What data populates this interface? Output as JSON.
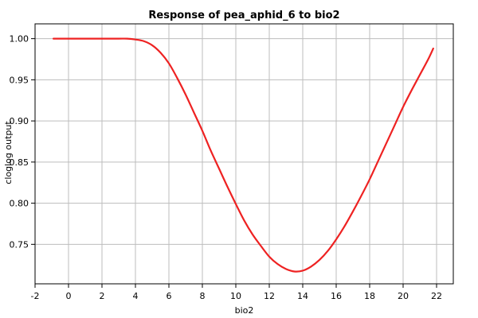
{
  "chart_data": {
    "type": "line",
    "title": "Response of pea_aphid_6 to bio2",
    "xlabel": "bio2",
    "ylabel": "cloglog output",
    "xlim": [
      -2,
      23
    ],
    "ylim": [
      0.702,
      1.018
    ],
    "x_ticks": [
      -2,
      0,
      2,
      4,
      6,
      8,
      10,
      12,
      14,
      16,
      18,
      20,
      22
    ],
    "x_tick_labels": [
      "-2",
      "0",
      "2",
      "4",
      "6",
      "8",
      "10",
      "12",
      "14",
      "16",
      "18",
      "20",
      "22"
    ],
    "y_ticks": [
      0.75,
      0.8,
      0.85,
      0.9,
      0.95,
      1.0
    ],
    "y_tick_labels": [
      "0.75",
      "0.80",
      "0.85",
      "0.90",
      "0.95",
      "1.00"
    ],
    "grid": true,
    "series": [
      {
        "color": "#ee2222",
        "x": [
          -0.9,
          0,
          1,
          2,
          3,
          3.5,
          4,
          4.5,
          5,
          5.5,
          6,
          6.5,
          7,
          7.5,
          8,
          8.5,
          9,
          9.5,
          10,
          10.5,
          11,
          11.5,
          12,
          12.5,
          13,
          13.5,
          14,
          14.5,
          15,
          15.5,
          16,
          16.5,
          17,
          17.5,
          18,
          18.5,
          19,
          19.5,
          20,
          20.5,
          21,
          21.5,
          21.8
        ],
        "y": [
          1.0,
          1.0,
          1.0,
          1.0,
          1.0,
          1.0,
          0.999,
          0.997,
          0.992,
          0.983,
          0.97,
          0.952,
          0.932,
          0.91,
          0.888,
          0.864,
          0.842,
          0.82,
          0.799,
          0.779,
          0.762,
          0.748,
          0.735,
          0.726,
          0.72,
          0.717,
          0.718,
          0.723,
          0.731,
          0.742,
          0.756,
          0.772,
          0.79,
          0.809,
          0.829,
          0.851,
          0.873,
          0.895,
          0.917,
          0.937,
          0.956,
          0.975,
          0.988
        ]
      }
    ]
  }
}
